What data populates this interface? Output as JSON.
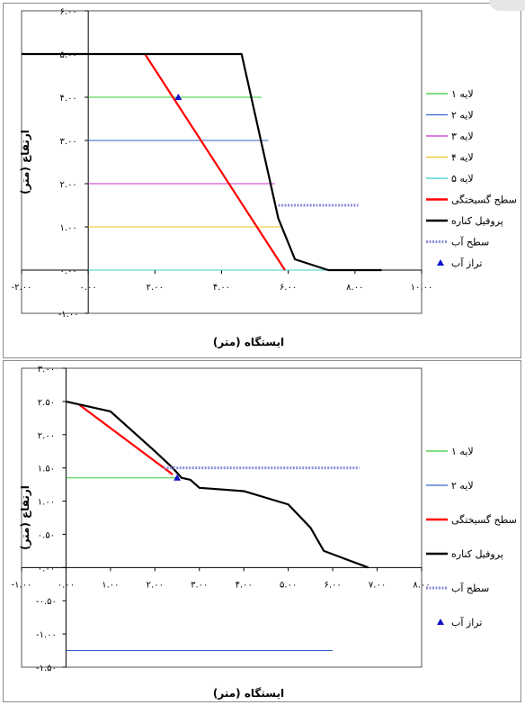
{
  "chart_data": [
    {
      "type": "line",
      "xlabel": "ایستگاه (متر)",
      "ylabel": "ارتفاع (متر)",
      "xlim": [
        -2,
        10
      ],
      "ylim": [
        -1,
        6
      ],
      "x_tick_values": [
        -2,
        0,
        2,
        4,
        6,
        8,
        10
      ],
      "x_tick_labels": [
        "-۲.۰۰",
        "۰.۰۰",
        "۲.۰۰",
        "۴.۰۰",
        "۶.۰۰",
        "۸.۰۰",
        "۱۰.۰۰"
      ],
      "y_tick_values": [
        -1,
        0,
        1,
        2,
        3,
        4,
        5,
        6
      ],
      "y_tick_labels": [
        "-۱.۰۰",
        "۰.۰۰",
        "۱.۰۰",
        "۲.۰۰",
        "۳.۰۰",
        "۴.۰۰",
        "۵.۰۰",
        "۶.۰۰"
      ],
      "legend_position": "right",
      "series": [
        {
          "name": "لایه ۱",
          "color": "#33cc33",
          "style": "line",
          "x": [
            0,
            5.2
          ],
          "y": [
            4,
            4
          ]
        },
        {
          "name": "لایه ۲",
          "color": "#3366cc",
          "style": "line",
          "x": [
            0,
            5.4
          ],
          "y": [
            3,
            3
          ]
        },
        {
          "name": "لایه ۳",
          "color": "#cc33cc",
          "style": "line",
          "x": [
            0,
            5.6
          ],
          "y": [
            2,
            2
          ]
        },
        {
          "name": "لایه ۴",
          "color": "#f0c020",
          "style": "line",
          "x": [
            0,
            5.8
          ],
          "y": [
            1,
            1
          ]
        },
        {
          "name": "لایه ۵",
          "color": "#33cccc",
          "style": "line",
          "x": [
            0,
            8.8
          ],
          "y": [
            0,
            0
          ]
        },
        {
          "name": "سطح گسیختگی",
          "color": "#ff0000",
          "style": "thick",
          "x": [
            1.7,
            5.9
          ],
          "y": [
            5,
            0
          ]
        },
        {
          "name": "پروفیل کناره",
          "color": "#000000",
          "style": "thick",
          "x": [
            -2,
            0,
            4.6,
            5.7,
            6.2,
            7.2,
            8.8
          ],
          "y": [
            5,
            5,
            5,
            1.2,
            0.25,
            0,
            0
          ]
        },
        {
          "name": "سطح آب",
          "color": "#8c8cdc",
          "style": "dashed",
          "x": [
            5.7,
            8.1
          ],
          "y": [
            1.5,
            1.5
          ]
        },
        {
          "name": "تراز آب",
          "color": "#1010cc",
          "style": "marker",
          "x": [
            2.7
          ],
          "y": [
            4
          ]
        }
      ]
    },
    {
      "type": "line",
      "xlabel": "ایستگاه (متر)",
      "ylabel": "ارتفاع (متر)",
      "xlim": [
        -1,
        8
      ],
      "ylim": [
        -1.5,
        3
      ],
      "x_tick_values": [
        -1,
        0,
        1,
        2,
        3,
        4,
        5,
        6,
        7,
        8
      ],
      "x_tick_labels": [
        "-۱.۰۰",
        "۰.۰۰",
        "۱.۰۰",
        "۲.۰۰",
        "۳.۰۰",
        "۴.۰۰",
        "۵.۰۰",
        "۶.۰۰",
        "۷.۰۰",
        "۸.۰۰"
      ],
      "y_tick_values": [
        -1.5,
        -1,
        -0.5,
        0,
        0.5,
        1,
        1.5,
        2,
        2.5,
        3
      ],
      "y_tick_labels": [
        "-۱.۵۰",
        "-۱.۰۰",
        "-۰.۵۰",
        "۰.۰۰",
        "۰.۵۰",
        "۱.۰۰",
        "۱.۵۰",
        "۲.۰۰",
        "۲.۵۰",
        "۳.۰۰"
      ],
      "legend_position": "right",
      "series": [
        {
          "name": "لایه ۱",
          "color": "#33cc33",
          "style": "line",
          "x": [
            0,
            2.5
          ],
          "y": [
            1.35,
            1.35
          ]
        },
        {
          "name": "لایه ۲",
          "color": "#3366cc",
          "style": "line",
          "x": [
            0,
            6
          ],
          "y": [
            -1.25,
            -1.25
          ]
        },
        {
          "name": "سطح گسیختگی",
          "color": "#ff0000",
          "style": "thick",
          "x": [
            0.3,
            2.4
          ],
          "y": [
            2.45,
            1.4
          ]
        },
        {
          "name": "پروفیل کناره",
          "color": "#000000",
          "style": "thick",
          "x": [
            0,
            1,
            1.5,
            2,
            2.4,
            2.6,
            2.8,
            3,
            4,
            5,
            5.5,
            5.8,
            6.8
          ],
          "y": [
            2.5,
            2.35,
            2.05,
            1.75,
            1.5,
            1.35,
            1.32,
            1.2,
            1.15,
            0.95,
            0.6,
            0.25,
            0
          ]
        },
        {
          "name": "سطح آب",
          "color": "#8c8cdc",
          "style": "dashed",
          "x": [
            2.2,
            6.6
          ],
          "y": [
            1.5,
            1.5
          ]
        },
        {
          "name": "تراز آب",
          "color": "#1010cc",
          "style": "marker",
          "x": [
            2.5
          ],
          "y": [
            1.35
          ]
        }
      ]
    }
  ]
}
